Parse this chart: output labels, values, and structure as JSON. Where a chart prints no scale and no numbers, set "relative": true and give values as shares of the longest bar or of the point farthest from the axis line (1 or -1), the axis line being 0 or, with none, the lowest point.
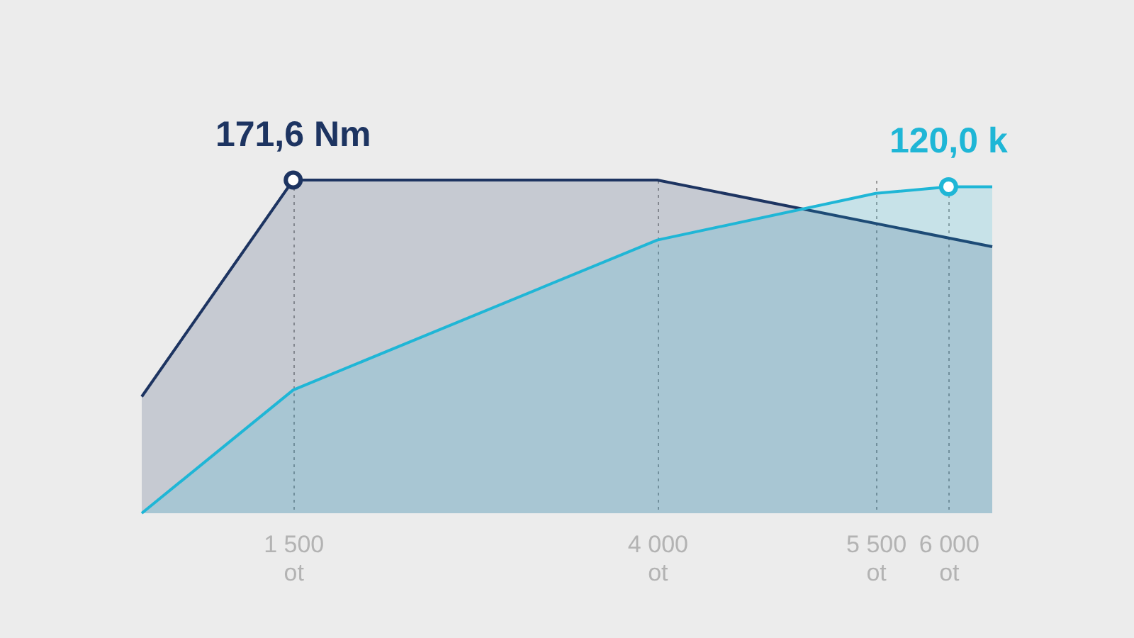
{
  "chart_data": {
    "type": "area",
    "relative": true,
    "xlim": [
      460,
      6300
    ],
    "xticks": [
      {
        "value": 1500,
        "label": "1 500\not"
      },
      {
        "value": 4000,
        "label": "4 000\not"
      },
      {
        "value": 5500,
        "label": "5 500\not"
      },
      {
        "value": 6000,
        "label": "6 000\not"
      }
    ],
    "grid": "x",
    "series": [
      {
        "color": "#1d3461",
        "x": [
          460,
          1500,
          4000,
          6300
        ],
        "values": [
          0.35,
          1,
          1,
          0.8
        ]
      },
      {
        "color": "#1fb6d6",
        "x": [
          460,
          1500,
          4000,
          5500,
          6000,
          6300
        ],
        "values": [
          0,
          0.37,
          0.82,
          0.96,
          0.98,
          0.98
        ]
      }
    ],
    "annotations": [
      {
        "text": "171,6 Nm",
        "x": 1500,
        "y": 1
      },
      {
        "text": "120,0 k",
        "x": 6000,
        "y": 0.98
      }
    ]
  }
}
